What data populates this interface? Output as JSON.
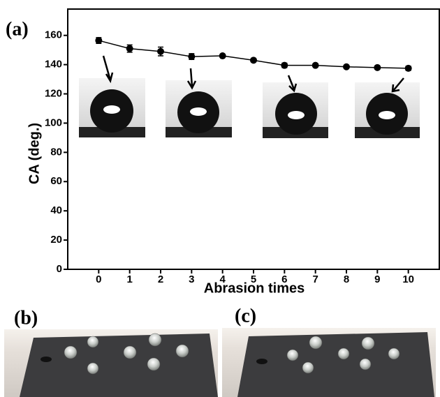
{
  "chart_data": {
    "type": "line",
    "panel_label": "(a)",
    "xlabel": "Abrasion times",
    "ylabel": "CA (deg.)",
    "x": [
      0,
      1,
      2,
      3,
      4,
      5,
      6,
      7,
      8,
      9,
      10
    ],
    "values": [
      156.5,
      151,
      149,
      145.5,
      146,
      143,
      139.5,
      139.5,
      138.5,
      138,
      137.5
    ],
    "errors": [
      2,
      2.5,
      3,
      2,
      1,
      1,
      1.5,
      1,
      1,
      1,
      1.5
    ],
    "color": "#000000",
    "xlim": [
      -1,
      11
    ],
    "ylim": [
      0,
      178
    ],
    "xticks": [
      0,
      1,
      2,
      3,
      4,
      5,
      6,
      7,
      8,
      9,
      10
    ],
    "yticks": [
      0,
      20,
      40,
      60,
      80,
      100,
      120,
      140,
      160
    ],
    "grid": false
  },
  "photos": {
    "left_label": "(b)",
    "right_label": "(c)"
  }
}
